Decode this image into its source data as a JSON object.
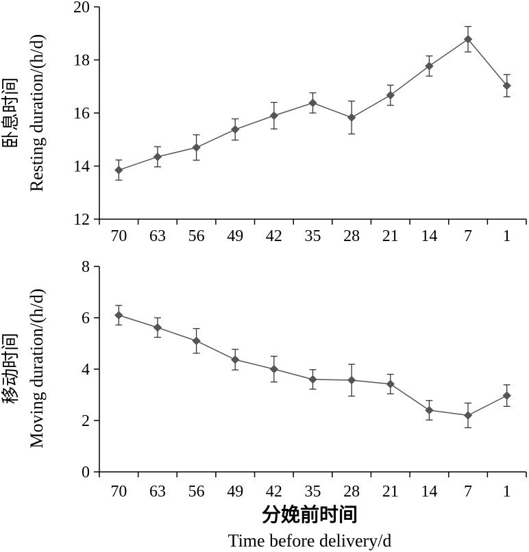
{
  "chart_data": [
    {
      "type": "line",
      "ylabel_cn": "卧息时间",
      "ylabel_en": "Resting duration/(h/d)",
      "categories": [
        "70",
        "63",
        "56",
        "49",
        "42",
        "35",
        "28",
        "21",
        "14",
        "7",
        "1"
      ],
      "series": [
        {
          "values": [
            13.85,
            14.35,
            14.7,
            15.38,
            15.9,
            16.38,
            15.83,
            16.67,
            17.77,
            18.78,
            17.03
          ],
          "errors": [
            0.38,
            0.38,
            0.48,
            0.4,
            0.5,
            0.38,
            0.62,
            0.38,
            0.38,
            0.48,
            0.42
          ]
        }
      ],
      "ylim": [
        12,
        20
      ],
      "yticks": [
        12,
        14,
        16,
        18,
        20
      ],
      "grid": false,
      "marker": "diamond",
      "color": "#555555"
    },
    {
      "type": "line",
      "ylabel_cn": "移动时间",
      "ylabel_en": "Moving duration/(h/d)",
      "xlabel_cn": "分娩前时间",
      "xlabel_en": "Time before delivery/d",
      "categories": [
        "70",
        "63",
        "56",
        "49",
        "42",
        "35",
        "28",
        "21",
        "14",
        "7",
        "1"
      ],
      "series": [
        {
          "values": [
            6.1,
            5.62,
            5.1,
            4.37,
            4.0,
            3.6,
            3.57,
            3.42,
            2.4,
            2.2,
            2.97
          ],
          "errors": [
            0.38,
            0.38,
            0.48,
            0.4,
            0.5,
            0.38,
            0.62,
            0.38,
            0.38,
            0.48,
            0.42
          ]
        }
      ],
      "ylim": [
        0,
        8
      ],
      "yticks": [
        0,
        2,
        4,
        6,
        8
      ],
      "grid": false,
      "marker": "diamond",
      "color": "#555555"
    }
  ]
}
